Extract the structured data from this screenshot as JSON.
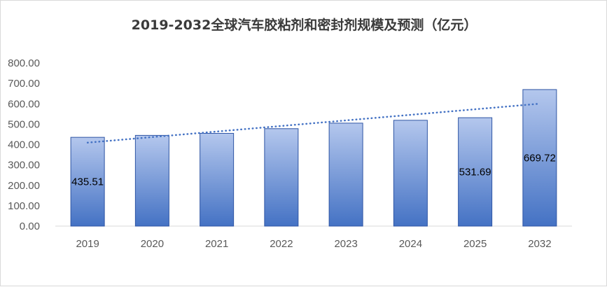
{
  "chart_data": {
    "type": "bar",
    "title": "2019-2032全球汽车胶粘剂和密封剂规模及预测（亿元）",
    "categories": [
      "2019",
      "2020",
      "2021",
      "2022",
      "2023",
      "2024",
      "2025",
      "2032"
    ],
    "values": [
      435.51,
      445,
      455,
      478,
      505,
      519,
      531.69,
      669.72
    ],
    "data_labels": [
      {
        "index": 0,
        "text": "435.51"
      },
      {
        "index": 6,
        "text": "531.69"
      },
      {
        "index": 7,
        "text": "669.72"
      }
    ],
    "ylim": [
      0,
      800
    ],
    "yticks": [
      "0.00",
      "100.00",
      "200.00",
      "300.00",
      "400.00",
      "500.00",
      "600.00",
      "700.00",
      "800.00"
    ],
    "xlabel": "",
    "ylabel": "",
    "grid": false,
    "trendline": {
      "type": "linear",
      "style": "dotted",
      "color": "#4472c4"
    },
    "colors": {
      "bar_top": "#b4c7ed",
      "bar_bottom": "#4472c4",
      "bar_border": "#2f55a4"
    }
  }
}
